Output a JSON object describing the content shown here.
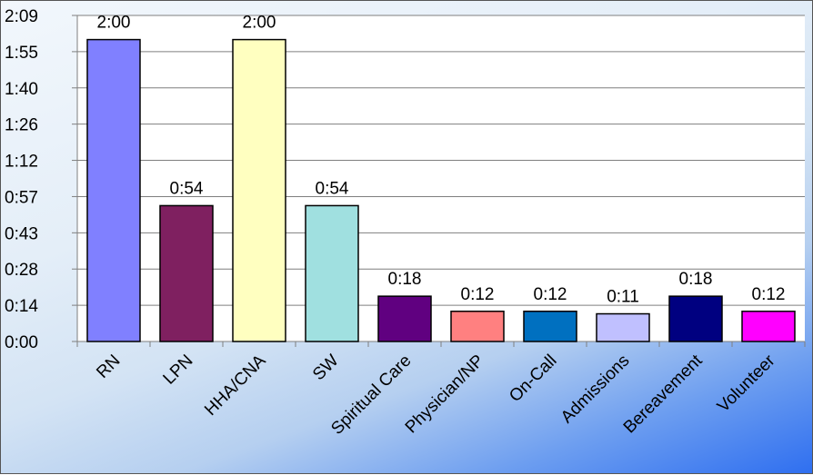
{
  "chart_data": {
    "type": "bar",
    "categories": [
      "RN",
      "LPN",
      "HHA/CNA",
      "SW",
      "Spiritual Care",
      "Physician/NP",
      "On-Call",
      "Admissions",
      "Bereavement",
      "Volunteer"
    ],
    "values_minutes": [
      120,
      54,
      120,
      54,
      18,
      12,
      12,
      11,
      18,
      12
    ],
    "data_labels": [
      "2:00",
      "0:54",
      "2:00",
      "0:54",
      "0:18",
      "0:12",
      "0:12",
      "0:11",
      "0:18",
      "0:12"
    ],
    "colors": [
      "#8080ff",
      "#7f2060",
      "#ffffc0",
      "#a0e0e0",
      "#600080",
      "#ff8080",
      "#0070c0",
      "#c0c0ff",
      "#000080",
      "#ff00ff"
    ],
    "y_tick_labels": [
      "0:00",
      "0:14",
      "0:28",
      "0:43",
      "0:57",
      "1:12",
      "1:26",
      "1:40",
      "1:55",
      "2:09"
    ],
    "y_tick_minutes": [
      0,
      14.4,
      28.8,
      43.2,
      57.6,
      72,
      86.4,
      100.8,
      115.2,
      129.6
    ],
    "ylim_minutes": [
      0,
      129.6
    ],
    "title": "",
    "xlabel": "",
    "ylabel": "",
    "grid": "horizontal",
    "legend": "none"
  }
}
